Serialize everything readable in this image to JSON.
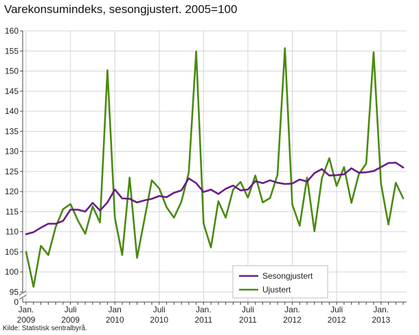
{
  "chart_data": {
    "type": "line",
    "title": "Varekonsumindeks, sesongjustert. 2005=100",
    "source": "Kilde: Statistisk sentralbyrå.",
    "y_ticks": [
      0,
      95,
      100,
      105,
      110,
      115,
      120,
      125,
      130,
      135,
      140,
      145,
      150,
      155,
      160
    ],
    "ylim": [
      92.5,
      160
    ],
    "y_axis_break": true,
    "x_ticks": [
      {
        "label": [
          "Jan.",
          "2009"
        ],
        "index": 0
      },
      {
        "label": [
          "Juli",
          "2009"
        ],
        "index": 6
      },
      {
        "label": [
          "Jan",
          "2010"
        ],
        "index": 12
      },
      {
        "label": [
          "Juli",
          "2010"
        ],
        "index": 18
      },
      {
        "label": [
          "Jan.",
          "2011"
        ],
        "index": 24
      },
      {
        "label": [
          "Juli",
          "2011"
        ],
        "index": 30
      },
      {
        "label": [
          "Jan.",
          "2012"
        ],
        "index": 36
      },
      {
        "label": [
          "Juli",
          "2012"
        ],
        "index": 42
      },
      {
        "label": [
          "Jan.",
          "2013"
        ],
        "index": 48
      }
    ],
    "grid": true,
    "legend_position": "bottom-right",
    "series": [
      {
        "name": "Sesongjustert",
        "color": "#6a1b87",
        "values": [
          109.4,
          109.9,
          111.0,
          112.0,
          112.0,
          112.7,
          115.5,
          115.5,
          115.0,
          117.2,
          115.3,
          117.3,
          120.5,
          118.3,
          118.2,
          117.3,
          117.8,
          118.2,
          118.9,
          118.6,
          119.7,
          120.3,
          123.3,
          122.1,
          119.9,
          120.5,
          119.4,
          120.7,
          121.5,
          120.3,
          120.5,
          122.6,
          122.1,
          122.8,
          122.2,
          121.9,
          122.0,
          123.0,
          122.5,
          124.6,
          125.6,
          124.0,
          124.1,
          124.3,
          125.8,
          124.7,
          124.8,
          125.1,
          126.1,
          127.1,
          127.2,
          126.0
        ]
      },
      {
        "name": "Ujustert",
        "color": "#4a8a12",
        "values": [
          105.0,
          96.3,
          106.5,
          104.2,
          111.2,
          115.6,
          116.9,
          112.8,
          109.5,
          116.3,
          112.3,
          150.2,
          113.5,
          104.2,
          123.5,
          103.5,
          113.0,
          122.8,
          120.8,
          116.1,
          113.5,
          117.5,
          124.7,
          154.9,
          112.0,
          106.1,
          117.6,
          113.5,
          120.5,
          122.4,
          118.5,
          124.0,
          117.3,
          118.4,
          124.2,
          155.7,
          116.8,
          111.5,
          123.5,
          110.1,
          123.3,
          128.3,
          121.4,
          126.1,
          117.2,
          124.3,
          127.0,
          154.7,
          121.9,
          111.8,
          122.2,
          118.3
        ]
      }
    ]
  }
}
